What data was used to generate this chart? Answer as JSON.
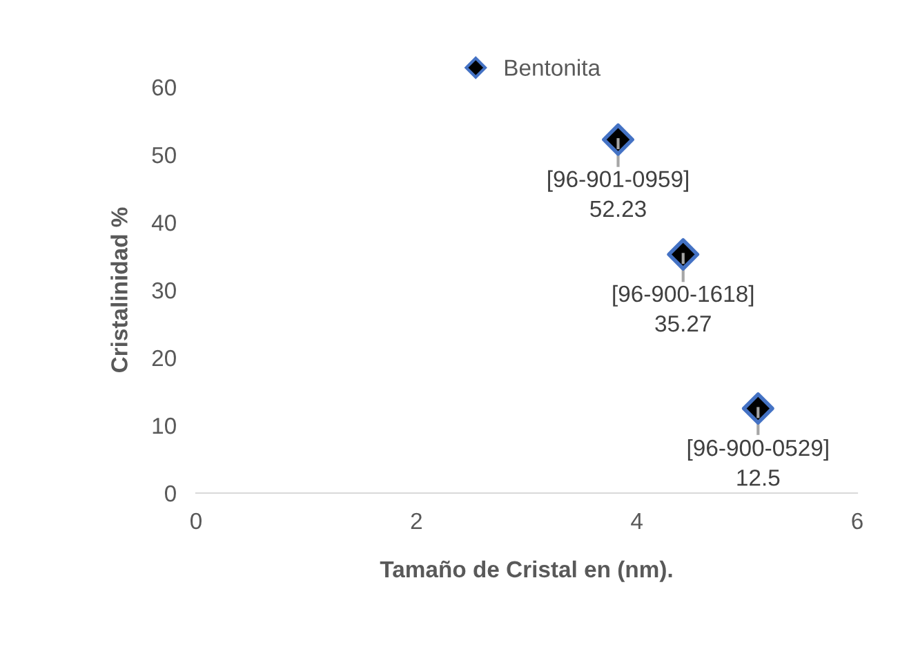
{
  "chart_data": {
    "type": "scatter",
    "xlabel": "Tamaño de Cristal en (nm).",
    "ylabel": "Cristalinidad %",
    "x": [
      3.83,
      4.42,
      5.1
    ],
    "series": [
      {
        "name": "Bentonita",
        "color": "#000000",
        "values": [
          52.23,
          35.27,
          12.5
        ],
        "errors": [
          [
            48.4,
            52.23
          ],
          [
            31.4,
            35.27
          ],
          [
            8.8,
            12.5
          ]
        ],
        "value_labels": [
          "[96-901-0959]\n52.23",
          "[96-900-1618]\n35.27",
          "[96-900-0529]\n12.5"
        ]
      }
    ],
    "xlim": [
      0,
      6
    ],
    "xticks": [
      0,
      2,
      4,
      6
    ],
    "ylim": [
      0,
      60
    ],
    "yticks": [
      0,
      10,
      20,
      30,
      40,
      50,
      60
    ],
    "marker": "diamond",
    "grid": false,
    "legend": "top"
  }
}
